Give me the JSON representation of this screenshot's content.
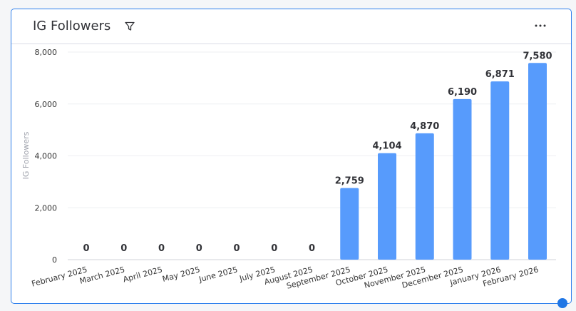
{
  "widget": {
    "title": "IG Followers",
    "filter_icon": "filter-icon",
    "menu_icon": "more-horizontal-icon",
    "menu_glyph": "···"
  },
  "colors": {
    "bar": "#579bfc",
    "border": "#2f80ed",
    "handle": "#1f76e5"
  },
  "chart_data": {
    "type": "bar",
    "title": "IG Followers",
    "ylabel": "IG Followers",
    "xlabel": "",
    "ylim": [
      0,
      8000
    ],
    "yticks": [
      0,
      2000,
      4000,
      6000,
      8000
    ],
    "ytick_labels": [
      "0",
      "2,000",
      "4,000",
      "6,000",
      "8,000"
    ],
    "grid": true,
    "categories": [
      "February 2025",
      "March 2025",
      "April 2025",
      "May 2025",
      "June 2025",
      "July 2025",
      "August 2025",
      "September 2025",
      "October 2025",
      "November 2025",
      "December 2025",
      "January 2026",
      "February 2026"
    ],
    "values": [
      0,
      0,
      0,
      0,
      0,
      0,
      0,
      2759,
      4104,
      4870,
      6190,
      6871,
      7580
    ],
    "value_labels": [
      "0",
      "0",
      "0",
      "0",
      "0",
      "0",
      "0",
      "2,759",
      "4,104",
      "4,870",
      "6,190",
      "6,871",
      "7,580"
    ]
  }
}
